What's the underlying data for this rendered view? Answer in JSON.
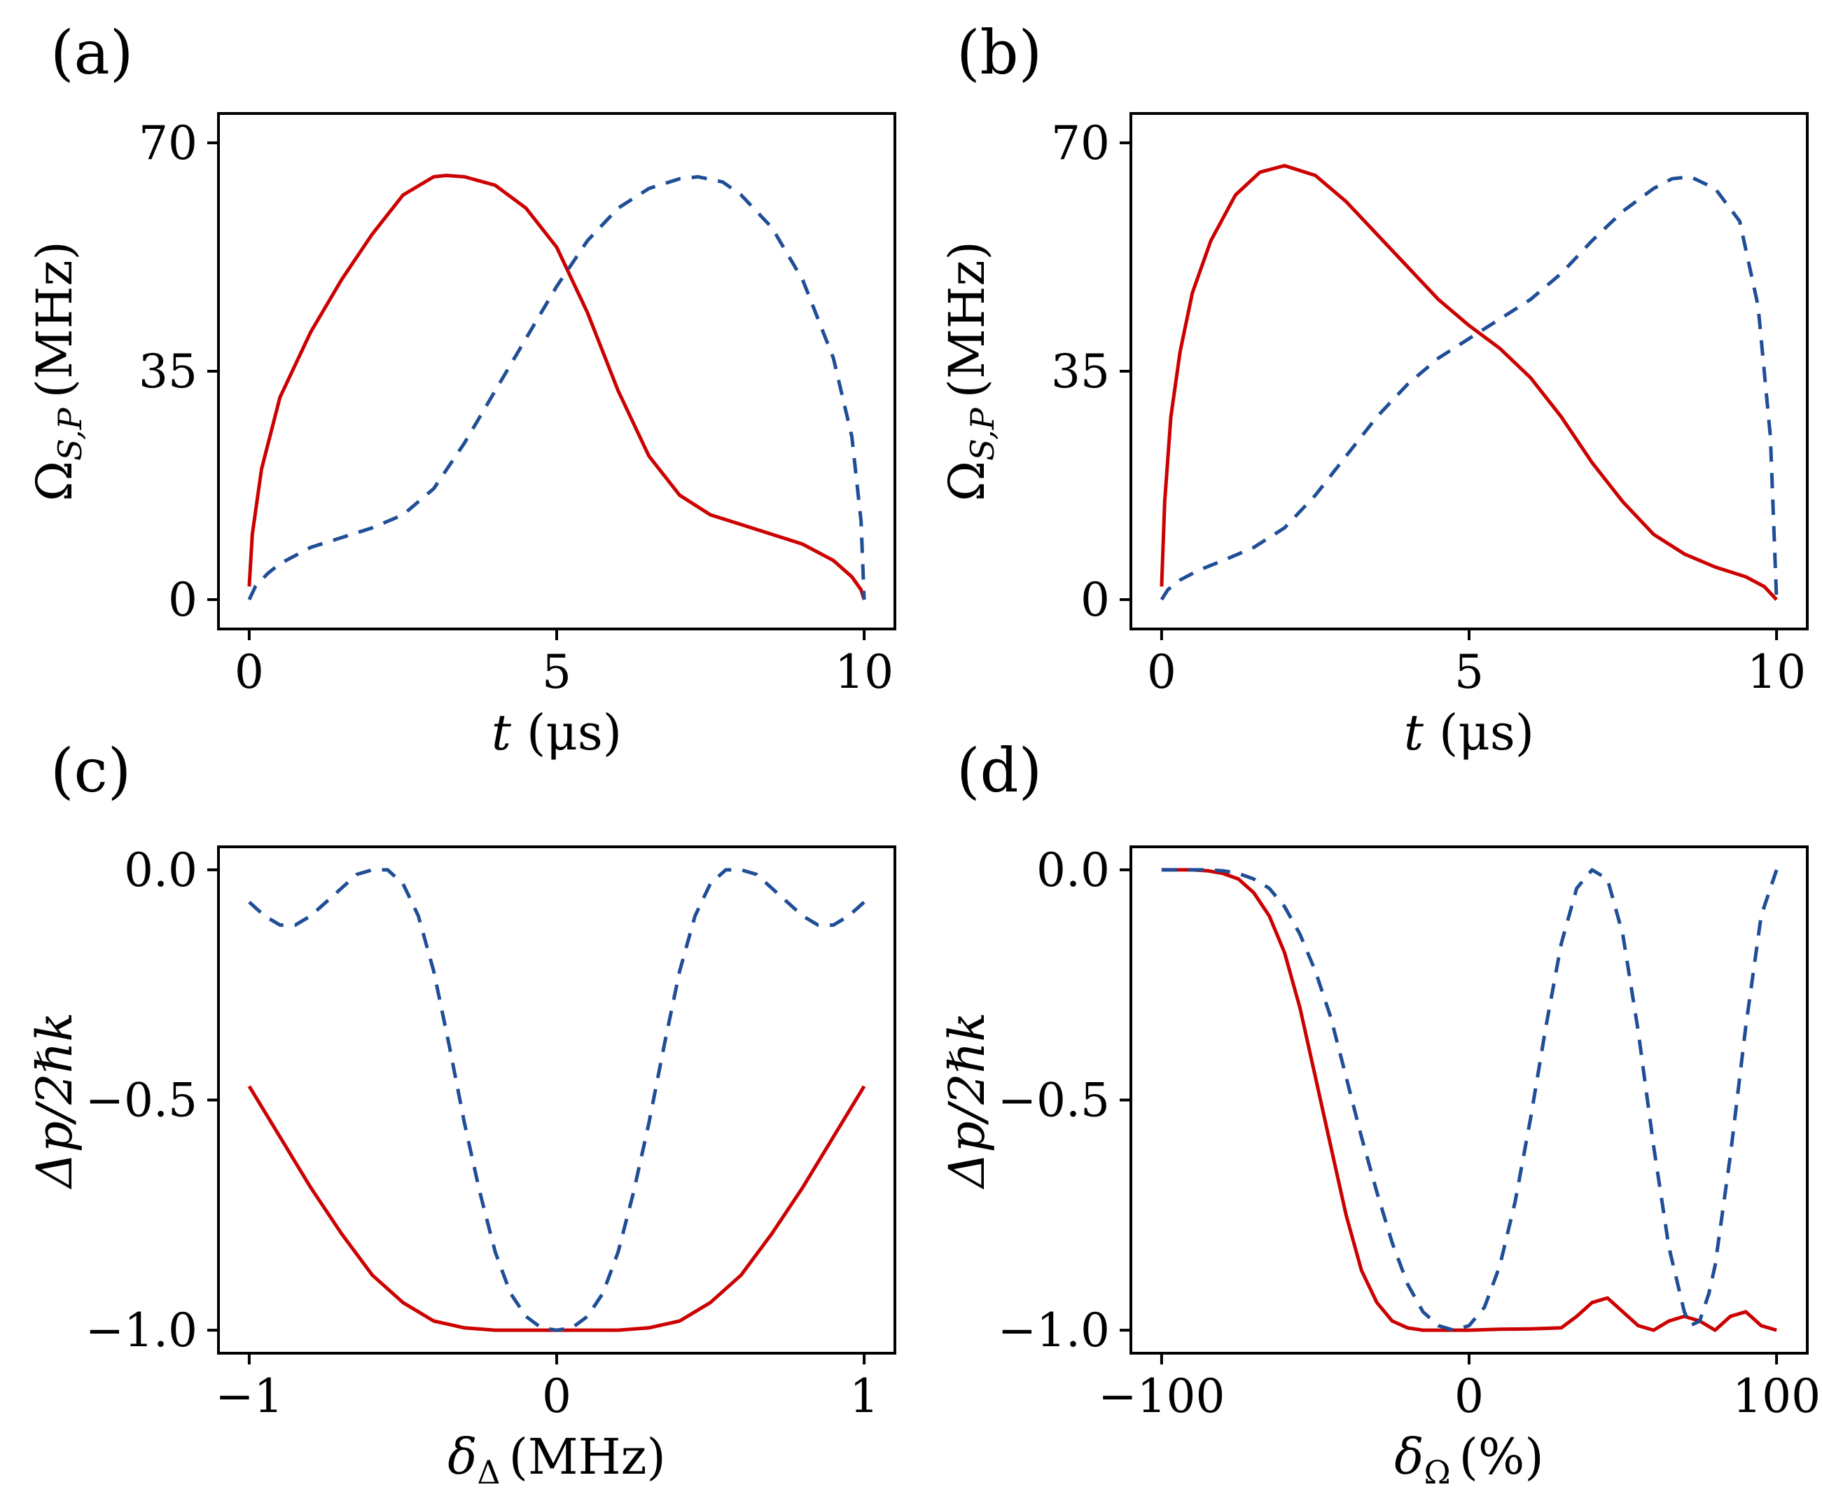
{
  "chart_data": [
    {
      "panel": "(a)",
      "type": "line",
      "xlabel_main": "t",
      "xlabel_unit": "(μs)",
      "ylabel_main": "Ω",
      "ylabel_sub": "S,P",
      "ylabel_unit": "(MHz)",
      "xlim": [
        -0.5,
        10.5
      ],
      "ylim": [
        -4.5,
        74.5
      ],
      "xticks": [
        {
          "v": 0,
          "label": "0"
        },
        {
          "v": 5,
          "label": "5"
        },
        {
          "v": 10,
          "label": "10"
        }
      ],
      "yticks": [
        {
          "v": 0,
          "label": "0"
        },
        {
          "v": 35,
          "label": "35"
        },
        {
          "v": 70,
          "label": "70"
        }
      ],
      "series": [
        {
          "name": "solid",
          "style": "solid",
          "color": "#cc0000",
          "x": [
            0,
            0.05,
            0.2,
            0.5,
            1.0,
            1.5,
            2.0,
            2.5,
            3.0,
            3.2,
            3.5,
            4.0,
            4.5,
            5.0,
            5.5,
            6.0,
            6.5,
            7.0,
            7.5,
            8.0,
            8.5,
            9.0,
            9.5,
            9.8,
            9.95,
            10.0
          ],
          "y": [
            2,
            10,
            20,
            31,
            41,
            49,
            56,
            62,
            64.8,
            65,
            64.8,
            63.5,
            60,
            54,
            44,
            32,
            22,
            16,
            13,
            11.5,
            10,
            8.5,
            6,
            3.5,
            1.5,
            0
          ]
        },
        {
          "name": "dashed",
          "style": "dashed",
          "color": "#1f4e96",
          "x": [
            0,
            0.1,
            0.3,
            0.5,
            1.0,
            1.5,
            2.0,
            2.5,
            3.0,
            3.5,
            4.0,
            4.5,
            5.0,
            5.5,
            6.0,
            6.5,
            7.0,
            7.3,
            7.7,
            8.0,
            8.5,
            9.0,
            9.5,
            9.8,
            9.95,
            10.0
          ],
          "y": [
            0,
            2,
            4,
            5.5,
            8,
            9.5,
            11,
            13,
            17,
            24,
            32,
            40,
            48,
            55,
            60,
            63,
            64.5,
            64.8,
            64,
            62,
            57,
            49,
            37,
            25,
            12,
            0
          ]
        }
      ]
    },
    {
      "panel": "(b)",
      "type": "line",
      "xlabel_main": "t",
      "xlabel_unit": "(μs)",
      "ylabel_main": "Ω",
      "ylabel_sub": "S,P",
      "ylabel_unit": "(MHz)",
      "xlim": [
        -0.5,
        10.5
      ],
      "ylim": [
        -4.5,
        74.5
      ],
      "xticks": [
        {
          "v": 0,
          "label": "0"
        },
        {
          "v": 5,
          "label": "5"
        },
        {
          "v": 10,
          "label": "10"
        }
      ],
      "yticks": [
        {
          "v": 0,
          "label": "0"
        },
        {
          "v": 35,
          "label": "35"
        },
        {
          "v": 70,
          "label": "70"
        }
      ],
      "series": [
        {
          "name": "solid",
          "style": "solid",
          "color": "#cc0000",
          "x": [
            0,
            0.05,
            0.15,
            0.3,
            0.5,
            0.8,
            1.2,
            1.6,
            2.0,
            2.5,
            3.0,
            3.5,
            4.0,
            4.5,
            5.0,
            5.5,
            6.0,
            6.5,
            7.0,
            7.5,
            8.0,
            8.5,
            9.0,
            9.5,
            9.8,
            10.0
          ],
          "y": [
            2,
            15,
            28,
            38,
            47,
            55,
            62,
            65.5,
            66.5,
            65,
            61,
            56,
            51,
            46,
            42,
            38.5,
            34,
            28,
            21,
            15,
            10,
            7,
            5,
            3.5,
            2,
            0
          ]
        },
        {
          "name": "dashed",
          "style": "dashed",
          "color": "#1f4e96",
          "x": [
            0,
            0.1,
            0.3,
            0.6,
            1.0,
            1.5,
            2.0,
            2.5,
            3.0,
            3.5,
            4.0,
            4.5,
            5.0,
            5.5,
            6.0,
            6.5,
            7.0,
            7.5,
            8.0,
            8.3,
            8.6,
            9.0,
            9.4,
            9.7,
            9.9,
            10.0
          ],
          "y": [
            0,
            1.5,
            3,
            4.5,
            6,
            8,
            11,
            16,
            22,
            28,
            33,
            37,
            40,
            43,
            46,
            50,
            55,
            59.5,
            63,
            64.5,
            64.8,
            63,
            58,
            45,
            25,
            0
          ]
        }
      ]
    },
    {
      "panel": "(c)",
      "type": "line",
      "xlabel_main": "δ",
      "xlabel_sub": "Δ",
      "xlabel_unit": "(MHz)",
      "ylabel_main": "Δp/2ℏk",
      "xlim": [
        -1.1,
        1.1
      ],
      "ylim": [
        -1.05,
        0.05
      ],
      "xticks": [
        {
          "v": -1,
          "label": "−1"
        },
        {
          "v": 0,
          "label": "0"
        },
        {
          "v": 1,
          "label": "1"
        }
      ],
      "yticks": [
        {
          "v": -1,
          "label": "−1.0"
        },
        {
          "v": -0.5,
          "label": "−0.5"
        },
        {
          "v": 0,
          "label": "0.0"
        }
      ],
      "series": [
        {
          "name": "solid",
          "style": "solid",
          "color": "#cc0000",
          "x": [
            -1.0,
            -0.9,
            -0.8,
            -0.7,
            -0.6,
            -0.5,
            -0.4,
            -0.3,
            -0.2,
            -0.1,
            0,
            0.1,
            0.2,
            0.3,
            0.4,
            0.5,
            0.6,
            0.7,
            0.8,
            0.9,
            1.0
          ],
          "y": [
            -0.47,
            -0.58,
            -0.69,
            -0.79,
            -0.88,
            -0.94,
            -0.98,
            -0.995,
            -1.0,
            -1.0,
            -1.0,
            -1.0,
            -1.0,
            -0.995,
            -0.98,
            -0.94,
            -0.88,
            -0.79,
            -0.69,
            -0.58,
            -0.47
          ]
        },
        {
          "name": "dashed",
          "style": "dashed",
          "color": "#1f4e96",
          "x": [
            -1.0,
            -0.95,
            -0.9,
            -0.85,
            -0.8,
            -0.75,
            -0.7,
            -0.65,
            -0.6,
            -0.55,
            -0.5,
            -0.45,
            -0.4,
            -0.35,
            -0.3,
            -0.25,
            -0.2,
            -0.15,
            -0.1,
            -0.05,
            0,
            0.05,
            0.1,
            0.15,
            0.2,
            0.25,
            0.3,
            0.35,
            0.4,
            0.45,
            0.5,
            0.55,
            0.6,
            0.65,
            0.7,
            0.75,
            0.8,
            0.85,
            0.9,
            0.95,
            1.0
          ],
          "y": [
            -0.07,
            -0.1,
            -0.12,
            -0.12,
            -0.1,
            -0.07,
            -0.04,
            -0.01,
            0.0,
            0.0,
            -0.03,
            -0.1,
            -0.22,
            -0.38,
            -0.55,
            -0.7,
            -0.83,
            -0.92,
            -0.97,
            -0.995,
            -1.0,
            -0.995,
            -0.97,
            -0.92,
            -0.83,
            -0.7,
            -0.55,
            -0.38,
            -0.22,
            -0.1,
            -0.03,
            0.0,
            0.0,
            -0.01,
            -0.04,
            -0.07,
            -0.1,
            -0.12,
            -0.12,
            -0.1,
            -0.07
          ]
        }
      ]
    },
    {
      "panel": "(d)",
      "type": "line",
      "xlabel_main": "δ",
      "xlabel_sub": "Ω",
      "xlabel_unit": "(%)",
      "ylabel_main": "Δp/2ℏk",
      "xlim": [
        -110,
        110
      ],
      "ylim": [
        -1.05,
        0.05
      ],
      "xticks": [
        {
          "v": -100,
          "label": "−100"
        },
        {
          "v": 0,
          "label": "0"
        },
        {
          "v": 100,
          "label": "100"
        }
      ],
      "yticks": [
        {
          "v": -1,
          "label": "−1.0"
        },
        {
          "v": -0.5,
          "label": "−0.5"
        },
        {
          "v": 0,
          "label": "0.0"
        }
      ],
      "series": [
        {
          "name": "solid",
          "style": "solid",
          "color": "#cc0000",
          "x": [
            -100,
            -90,
            -85,
            -80,
            -75,
            -70,
            -65,
            -60,
            -55,
            -50,
            -45,
            -40,
            -35,
            -30,
            -25,
            -20,
            -15,
            -10,
            -5,
            0,
            10,
            20,
            30,
            35,
            40,
            45,
            50,
            55,
            60,
            65,
            70,
            75,
            80,
            85,
            90,
            95,
            100
          ],
          "y": [
            0,
            0,
            -0.002,
            -0.008,
            -0.02,
            -0.05,
            -0.1,
            -0.18,
            -0.3,
            -0.45,
            -0.6,
            -0.75,
            -0.87,
            -0.94,
            -0.98,
            -0.995,
            -1.0,
            -1.0,
            -1.0,
            -1.0,
            -0.998,
            -0.997,
            -0.995,
            -0.97,
            -0.94,
            -0.93,
            -0.96,
            -0.99,
            -1.0,
            -0.98,
            -0.97,
            -0.98,
            -1.0,
            -0.97,
            -0.96,
            -0.99,
            -1.0
          ]
        },
        {
          "name": "dashed",
          "style": "dashed",
          "color": "#1f4e96",
          "x": [
            -100,
            -90,
            -85,
            -80,
            -75,
            -70,
            -65,
            -60,
            -55,
            -50,
            -45,
            -40,
            -35,
            -30,
            -25,
            -20,
            -15,
            -10,
            -5,
            0,
            5,
            10,
            15,
            20,
            25,
            30,
            35,
            40,
            45,
            50,
            55,
            60,
            65,
            70,
            72,
            75,
            78,
            80,
            85,
            90,
            95,
            100
          ],
          "y": [
            0,
            0,
            0,
            -0.002,
            -0.008,
            -0.02,
            -0.04,
            -0.08,
            -0.14,
            -0.22,
            -0.32,
            -0.45,
            -0.58,
            -0.7,
            -0.81,
            -0.9,
            -0.96,
            -0.99,
            -1.0,
            -0.99,
            -0.95,
            -0.86,
            -0.72,
            -0.54,
            -0.34,
            -0.16,
            -0.04,
            0.0,
            -0.02,
            -0.14,
            -0.35,
            -0.6,
            -0.82,
            -0.96,
            -0.99,
            -0.98,
            -0.92,
            -0.86,
            -0.62,
            -0.34,
            -0.1,
            0.0
          ]
        }
      ]
    }
  ]
}
